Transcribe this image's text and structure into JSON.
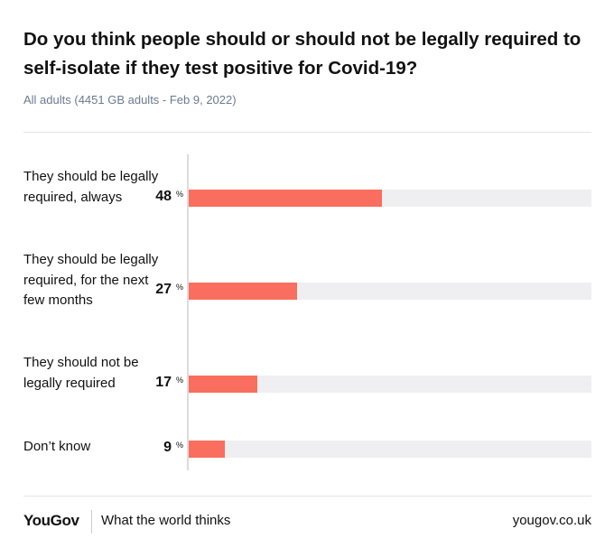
{
  "header": {
    "title": "Do you think people should or should not be legally required to self-isolate if they test positive for Covid-19?",
    "subtitle": "All adults (4451 GB adults - Feb 9, 2022)"
  },
  "chart_data": {
    "type": "bar",
    "orientation": "horizontal",
    "title": "Do you think people should or should not be legally required to self-isolate if they test positive for Covid-19?",
    "xlim": [
      0,
      100
    ],
    "unit": "%",
    "bar_color": "#f96e5e",
    "track_color": "#efeff1",
    "categories": [
      "They should be legally required, always",
      "They should be legally required, for the next few months",
      "They should not be legally required",
      "Don’t know"
    ],
    "values": [
      48,
      27,
      17,
      9
    ]
  },
  "footer": {
    "brand": "YouGov",
    "tagline": "What the world thinks",
    "url": "yougov.co.uk"
  }
}
